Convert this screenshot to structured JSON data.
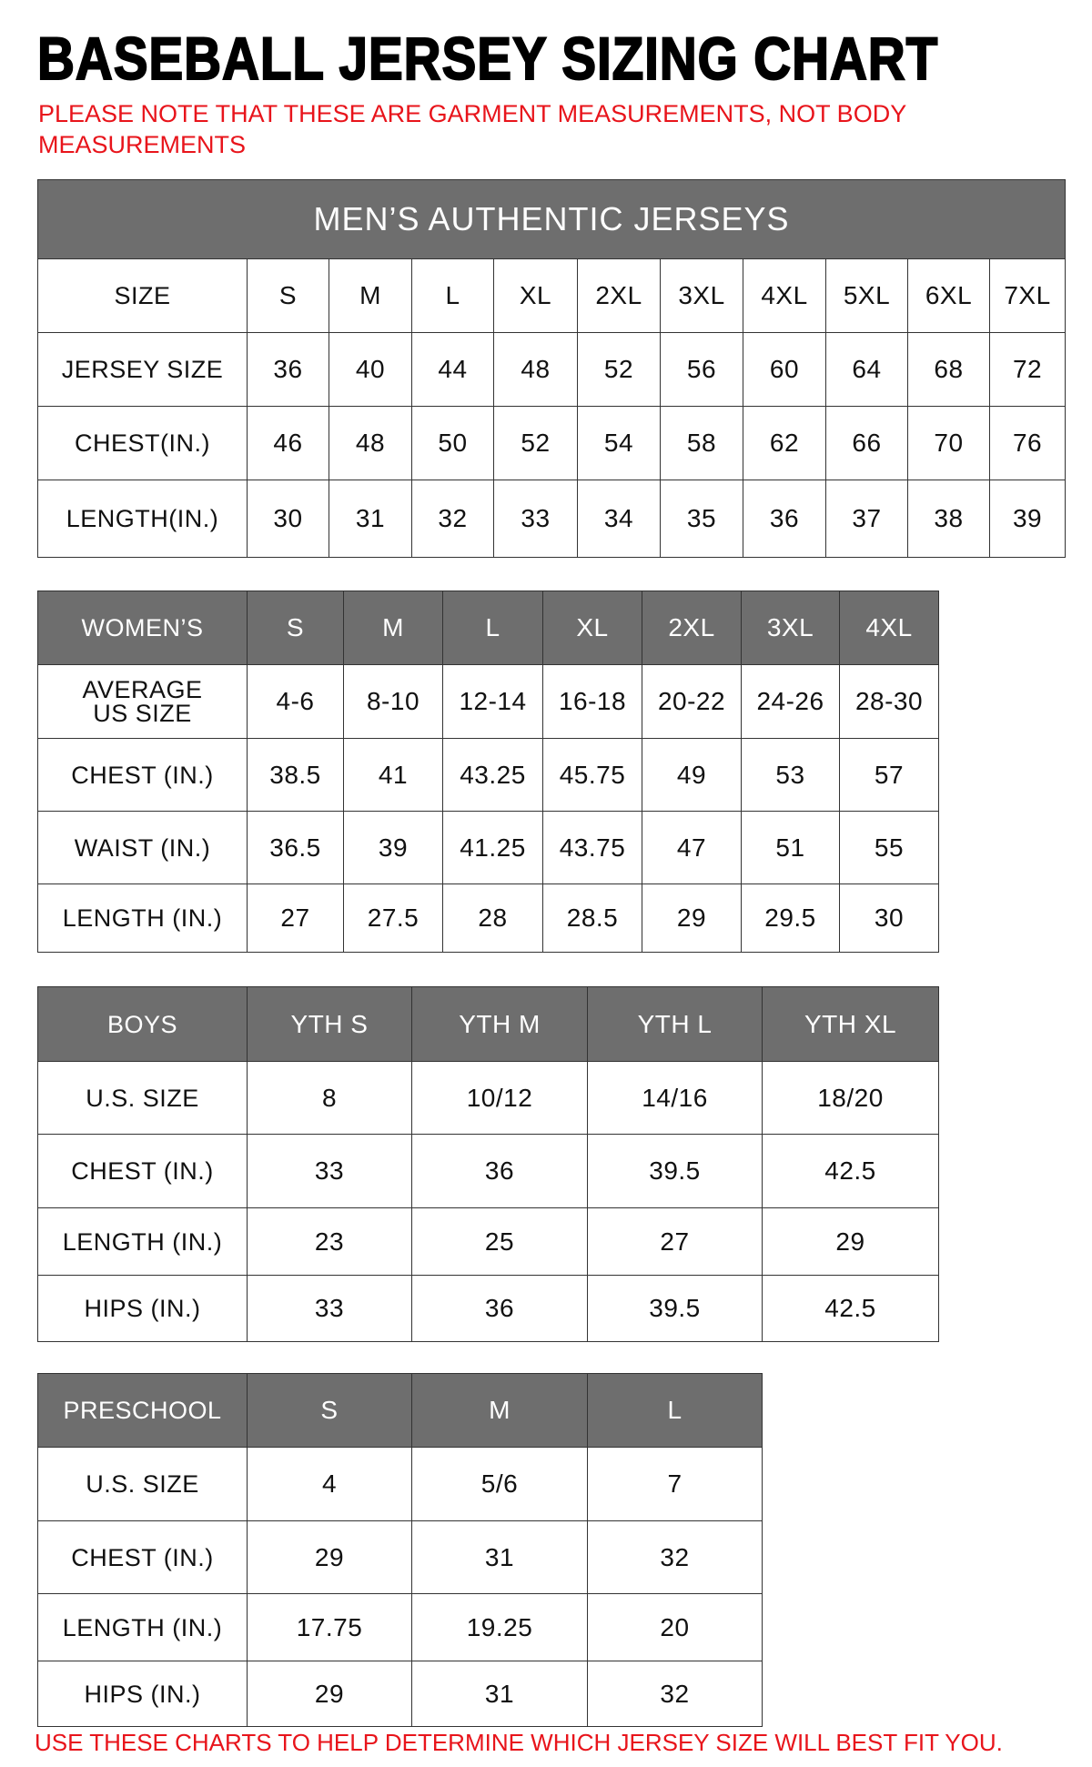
{
  "title": "BASEBALL JERSEY SIZING CHART",
  "note": "PLEASE NOTE THAT THESE ARE GARMENT MEASUREMENTS, NOT BODY MEASUREMENTS",
  "footer": "USE THESE CHARTS TO HELP DETERMINE WHICH JERSEY SIZE WILL BEST FIT YOU.",
  "colors": {
    "header_bg": "#6e6e6e",
    "note": "#e8141b"
  },
  "tables": [
    {
      "id": "mens",
      "caption": "MEN’S AUTHENTIC JERSEYS",
      "header_row_gray": false,
      "header": [
        "SIZE",
        "S",
        "M",
        "L",
        "XL",
        "2XL",
        "3XL",
        "4XL",
        "5XL",
        "6XL",
        "7XL"
      ],
      "rows": [
        [
          "JERSEY SIZE",
          "36",
          "40",
          "44",
          "48",
          "52",
          "56",
          "60",
          "64",
          "68",
          "72"
        ],
        [
          "CHEST(IN.)",
          "46",
          "48",
          "50",
          "52",
          "54",
          "58",
          "62",
          "66",
          "70",
          "76"
        ],
        [
          "LENGTH(IN.)",
          "30",
          "31",
          "32",
          "33",
          "34",
          "35",
          "36",
          "37",
          "38",
          "39"
        ]
      ]
    },
    {
      "id": "womens",
      "header_row_gray": true,
      "header": [
        "WOMEN’S",
        "S",
        "M",
        "L",
        "XL",
        "2XL",
        "3XL",
        "4XL"
      ],
      "rows": [
        [
          "AVERAGE US SIZE",
          "4-6",
          "8-10",
          "12-14",
          "16-18",
          "20-22",
          "24-26",
          "28-30"
        ],
        [
          "CHEST (IN.)",
          "38.5",
          "41",
          "43.25",
          "45.75",
          "49",
          "53",
          "57"
        ],
        [
          "WAIST (IN.)",
          "36.5",
          "39",
          "41.25",
          "43.75",
          "47",
          "51",
          "55"
        ],
        [
          "LENGTH (IN.)",
          "27",
          "27.5",
          "28",
          "28.5",
          "29",
          "29.5",
          "30"
        ]
      ]
    },
    {
      "id": "boys",
      "header_row_gray": true,
      "header": [
        "BOYS",
        "YTH S",
        "YTH M",
        "YTH L",
        "YTH XL"
      ],
      "rows": [
        [
          "U.S. SIZE",
          "8",
          "10/12",
          "14/16",
          "18/20"
        ],
        [
          "CHEST (IN.)",
          "33",
          "36",
          "39.5",
          "42.5"
        ],
        [
          "LENGTH (IN.)",
          "23",
          "25",
          "27",
          "29"
        ],
        [
          "HIPS (IN.)",
          "33",
          "36",
          "39.5",
          "42.5"
        ]
      ]
    },
    {
      "id": "preschool",
      "header_row_gray": true,
      "header": [
        "PRESCHOOL",
        "S",
        "M",
        "L"
      ],
      "rows": [
        [
          "U.S. SIZE",
          "4",
          "5/6",
          "7"
        ],
        [
          "CHEST (IN.)",
          "29",
          "31",
          "32"
        ],
        [
          "LENGTH (IN.)",
          "17.75",
          "19.25",
          "20"
        ],
        [
          "HIPS (IN.)",
          "29",
          "31",
          "32"
        ]
      ]
    }
  ]
}
